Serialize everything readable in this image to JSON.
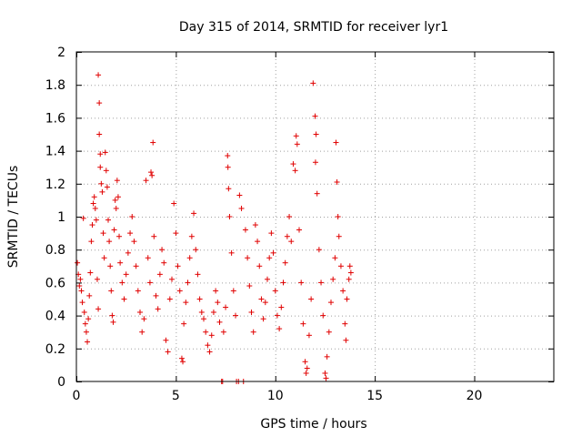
{
  "chart_data": {
    "type": "scatter",
    "title": "Day 315 of 2014, SRMTID for receiver lyr1",
    "xlabel": "GPS time / hours",
    "ylabel": "SRMTID / TECUs",
    "xlim": [
      0,
      24
    ],
    "ylim": [
      0,
      2
    ],
    "x_ticks": [
      0,
      5,
      10,
      15,
      20
    ],
    "x_tick_labels": [
      "0",
      "5",
      "10",
      "15",
      "20"
    ],
    "y_ticks": [
      0,
      0.2,
      0.4,
      0.6,
      0.8,
      1,
      1.2,
      1.4,
      1.6,
      1.8,
      2
    ],
    "y_tick_labels": [
      "0",
      "0.2",
      "0.4",
      "0.6",
      "0.8",
      "1",
      "1.2",
      "1.4",
      "1.6",
      "1.8",
      "2"
    ],
    "grid": true,
    "marker": "+",
    "color": "#e00000",
    "series": [
      {
        "name": "lyr1",
        "points": [
          [
            0.05,
            0.72
          ],
          [
            0.1,
            0.65
          ],
          [
            0.15,
            0.58
          ],
          [
            0.2,
            0.62
          ],
          [
            0.25,
            0.55
          ],
          [
            0.3,
            0.48
          ],
          [
            0.35,
            0.99
          ],
          [
            0.4,
            0.42
          ],
          [
            0.45,
            0.35
          ],
          [
            0.5,
            0.3
          ],
          [
            0.55,
            0.24
          ],
          [
            0.6,
            0.38
          ],
          [
            0.65,
            0.52
          ],
          [
            0.7,
            0.66
          ],
          [
            0.75,
            0.85
          ],
          [
            0.8,
            0.95
          ],
          [
            0.85,
            1.08
          ],
          [
            0.9,
            1.12
          ],
          [
            0.95,
            1.05
          ],
          [
            1.0,
            0.98
          ],
          [
            1.05,
            0.62
          ],
          [
            1.1,
            0.44
          ],
          [
            1.1,
            1.86
          ],
          [
            1.15,
            1.69
          ],
          [
            1.15,
            1.5
          ],
          [
            1.2,
            1.38
          ],
          [
            1.2,
            1.3
          ],
          [
            1.25,
            1.2
          ],
          [
            1.3,
            1.15
          ],
          [
            1.35,
            0.9
          ],
          [
            1.4,
            0.75
          ],
          [
            1.45,
            1.39
          ],
          [
            1.5,
            1.28
          ],
          [
            1.55,
            1.18
          ],
          [
            1.6,
            0.98
          ],
          [
            1.65,
            0.85
          ],
          [
            1.7,
            0.7
          ],
          [
            1.75,
            0.55
          ],
          [
            1.8,
            0.4
          ],
          [
            1.85,
            0.36
          ],
          [
            1.9,
            0.92
          ],
          [
            1.95,
            1.1
          ],
          [
            2.0,
            1.05
          ],
          [
            2.05,
            1.22
          ],
          [
            2.1,
            1.12
          ],
          [
            2.15,
            0.88
          ],
          [
            2.2,
            0.72
          ],
          [
            2.3,
            0.6
          ],
          [
            2.4,
            0.5
          ],
          [
            2.5,
            0.65
          ],
          [
            2.6,
            0.78
          ],
          [
            2.7,
            0.9
          ],
          [
            2.8,
            1.0
          ],
          [
            2.9,
            0.85
          ],
          [
            3.0,
            0.7
          ],
          [
            3.1,
            0.55
          ],
          [
            3.2,
            0.42
          ],
          [
            3.3,
            0.3
          ],
          [
            3.4,
            0.38
          ],
          [
            3.5,
            1.22
          ],
          [
            3.6,
            0.75
          ],
          [
            3.7,
            0.6
          ],
          [
            3.75,
            1.27
          ],
          [
            3.8,
            1.25
          ],
          [
            3.85,
            1.45
          ],
          [
            3.9,
            0.88
          ],
          [
            4.0,
            0.52
          ],
          [
            4.1,
            0.44
          ],
          [
            4.2,
            0.65
          ],
          [
            4.3,
            0.8
          ],
          [
            4.4,
            0.72
          ],
          [
            4.5,
            0.25
          ],
          [
            4.6,
            0.18
          ],
          [
            4.7,
            0.5
          ],
          [
            4.8,
            0.62
          ],
          [
            4.9,
            1.08
          ],
          [
            5.0,
            0.9
          ],
          [
            5.1,
            0.7
          ],
          [
            5.2,
            0.55
          ],
          [
            5.3,
            0.14
          ],
          [
            5.35,
            0.12
          ],
          [
            5.4,
            0.35
          ],
          [
            5.5,
            0.48
          ],
          [
            5.6,
            0.6
          ],
          [
            5.7,
            0.75
          ],
          [
            5.8,
            0.88
          ],
          [
            5.9,
            1.02
          ],
          [
            6.0,
            0.8
          ],
          [
            6.1,
            0.65
          ],
          [
            6.2,
            0.5
          ],
          [
            6.3,
            0.42
          ],
          [
            6.4,
            0.38
          ],
          [
            6.5,
            0.3
          ],
          [
            6.6,
            0.22
          ],
          [
            6.7,
            0.18
          ],
          [
            6.8,
            0.28
          ],
          [
            6.9,
            0.42
          ],
          [
            7.0,
            0.55
          ],
          [
            7.1,
            0.48
          ],
          [
            7.2,
            0.36
          ],
          [
            7.3,
            0.0
          ],
          [
            7.35,
            0.0
          ],
          [
            7.4,
            0.3
          ],
          [
            7.5,
            0.45
          ],
          [
            7.6,
            1.37
          ],
          [
            7.62,
            1.3
          ],
          [
            7.65,
            1.17
          ],
          [
            7.7,
            1.0
          ],
          [
            7.8,
            0.78
          ],
          [
            7.9,
            0.55
          ],
          [
            8.0,
            0.4
          ],
          [
            8.05,
            0.0
          ],
          [
            8.15,
            0.0
          ],
          [
            8.2,
            1.13
          ],
          [
            8.3,
            1.05
          ],
          [
            8.4,
            0.0
          ],
          [
            8.5,
            0.92
          ],
          [
            8.6,
            0.75
          ],
          [
            8.7,
            0.58
          ],
          [
            8.8,
            0.42
          ],
          [
            8.9,
            0.3
          ],
          [
            9.0,
            0.95
          ],
          [
            9.1,
            0.85
          ],
          [
            9.2,
            0.7
          ],
          [
            9.3,
            0.5
          ],
          [
            9.4,
            0.38
          ],
          [
            9.5,
            0.48
          ],
          [
            9.6,
            0.62
          ],
          [
            9.7,
            0.75
          ],
          [
            9.8,
            0.9
          ],
          [
            9.9,
            0.78
          ],
          [
            10.0,
            0.55
          ],
          [
            10.1,
            0.4
          ],
          [
            10.2,
            0.32
          ],
          [
            10.3,
            0.45
          ],
          [
            10.4,
            0.6
          ],
          [
            10.5,
            0.72
          ],
          [
            10.6,
            0.88
          ],
          [
            10.7,
            1.0
          ],
          [
            10.8,
            0.85
          ],
          [
            10.9,
            1.32
          ],
          [
            11.0,
            1.28
          ],
          [
            11.05,
            1.49
          ],
          [
            11.1,
            1.44
          ],
          [
            11.2,
            0.92
          ],
          [
            11.3,
            0.6
          ],
          [
            11.4,
            0.35
          ],
          [
            11.5,
            0.12
          ],
          [
            11.55,
            0.05
          ],
          [
            11.6,
            0.08
          ],
          [
            11.7,
            0.28
          ],
          [
            11.8,
            0.5
          ],
          [
            11.9,
            1.81
          ],
          [
            12.0,
            1.61
          ],
          [
            12.02,
            1.33
          ],
          [
            12.05,
            1.5
          ],
          [
            12.1,
            1.14
          ],
          [
            12.2,
            0.8
          ],
          [
            12.3,
            0.6
          ],
          [
            12.4,
            0.4
          ],
          [
            12.5,
            0.05
          ],
          [
            12.55,
            0.02
          ],
          [
            12.6,
            0.15
          ],
          [
            12.7,
            0.3
          ],
          [
            12.8,
            0.48
          ],
          [
            12.9,
            0.62
          ],
          [
            13.0,
            0.75
          ],
          [
            13.05,
            1.45
          ],
          [
            13.1,
            1.21
          ],
          [
            13.15,
            1.0
          ],
          [
            13.2,
            0.88
          ],
          [
            13.3,
            0.7
          ],
          [
            13.4,
            0.55
          ],
          [
            13.5,
            0.35
          ],
          [
            13.55,
            0.25
          ],
          [
            13.6,
            0.5
          ],
          [
            13.7,
            0.62
          ],
          [
            13.75,
            0.7
          ],
          [
            13.8,
            0.66
          ]
        ]
      }
    ]
  }
}
